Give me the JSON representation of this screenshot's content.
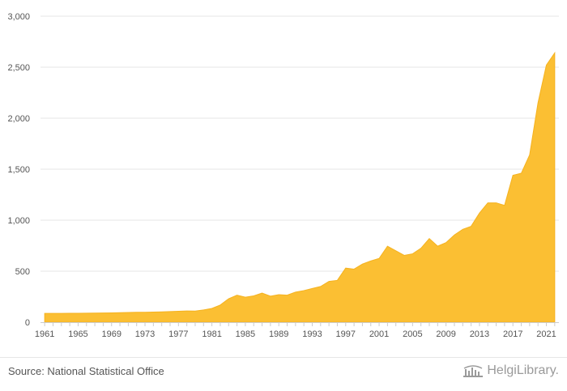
{
  "colors": {
    "area_fill": "#fbbf33",
    "area_stroke": "#f5b21f",
    "grid": "#e6e6e6",
    "axis_text": "#555555"
  },
  "footer": {
    "source": "Source: National Statistical Office",
    "brand": "HelgiLibrary."
  },
  "chart_data": {
    "type": "area",
    "title": "",
    "xlabel": "",
    "ylabel": "",
    "ylim": [
      0,
      3000
    ],
    "yticks": [
      0,
      500,
      1000,
      1500,
      2000,
      2500,
      3000
    ],
    "ytick_labels": [
      "0",
      "500",
      "1,000",
      "1,500",
      "2,000",
      "2,500",
      "3,000"
    ],
    "xtick_labels": [
      "1961",
      "1965",
      "1969",
      "1973",
      "1977",
      "1981",
      "1985",
      "1989",
      "1993",
      "1997",
      "2001",
      "2005",
      "2009",
      "2013",
      "2017",
      "2021"
    ],
    "grid": true,
    "legend": "none",
    "x": [
      1961,
      1962,
      1963,
      1964,
      1965,
      1966,
      1967,
      1968,
      1969,
      1970,
      1971,
      1972,
      1973,
      1974,
      1975,
      1976,
      1977,
      1978,
      1979,
      1980,
      1981,
      1982,
      1983,
      1984,
      1985,
      1986,
      1987,
      1988,
      1989,
      1990,
      1991,
      1992,
      1993,
      1994,
      1995,
      1996,
      1997,
      1998,
      1999,
      2000,
      2001,
      2002,
      2003,
      2004,
      2005,
      2006,
      2007,
      2008,
      2009,
      2010,
      2011,
      2012,
      2013,
      2014,
      2015,
      2016,
      2017,
      2018,
      2019,
      2020,
      2021,
      2022
    ],
    "series": [
      {
        "values": [
          86,
          86,
          86,
          87,
          87,
          88,
          89,
          90,
          91,
          93,
          95,
          97,
          97,
          99,
          101,
          104,
          107,
          110,
          109,
          120,
          135,
          168,
          230,
          265,
          245,
          258,
          285,
          255,
          270,
          265,
          295,
          310,
          330,
          350,
          400,
          410,
          530,
          520,
          570,
          600,
          625,
          745,
          700,
          655,
          670,
          725,
          820,
          745,
          780,
          855,
          910,
          940,
          1070,
          1170,
          1170,
          1145,
          1440,
          1460,
          1640,
          2150,
          2520,
          2640
        ]
      }
    ]
  }
}
